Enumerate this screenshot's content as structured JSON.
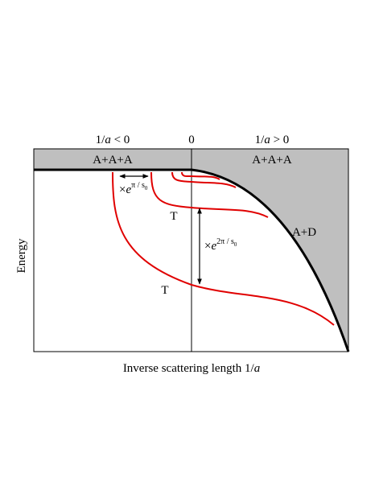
{
  "header": {
    "left": {
      "prefix": "1/",
      "var": "a",
      "suffix": " < 0"
    },
    "center": "0",
    "right": {
      "prefix": "1/",
      "var": "a",
      "suffix": " > 0"
    }
  },
  "regions": {
    "left": "A+A+A",
    "right": "A+A+A",
    "dimer": "A+D"
  },
  "trimer_labels": [
    "T",
    "T"
  ],
  "scalings": [
    {
      "times": "×",
      "base": "e",
      "exponent": "π / s",
      "sub": "0"
    },
    {
      "times": "×",
      "base": "e",
      "exponent": "2π / s",
      "sub": "0"
    }
  ],
  "axes": {
    "y": "Energy",
    "x": {
      "text": "Inverse scattering length 1/",
      "var": "a"
    }
  }
}
